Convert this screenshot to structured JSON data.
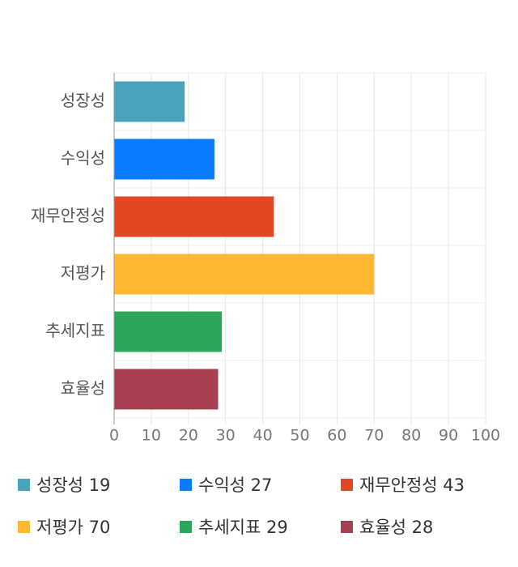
{
  "chart_data": {
    "type": "bar",
    "orientation": "horizontal",
    "categories": [
      "성장성",
      "수익성",
      "재무안정성",
      "저평가",
      "추세지표",
      "효율성"
    ],
    "values": [
      19,
      27,
      43,
      70,
      29,
      28
    ],
    "colors": [
      "#4aa3ba",
      "#0a7afe",
      "#e34622",
      "#fdb733",
      "#2ca75a",
      "#a63f4f"
    ],
    "xlim": [
      0,
      100
    ],
    "xticks": [
      "0",
      "10",
      "20",
      "30",
      "40",
      "50",
      "60",
      "70",
      "80",
      "90",
      "100"
    ],
    "grid": true,
    "legend_position": "bottom"
  },
  "legend": [
    {
      "label": "성장성 19",
      "color": "#4aa3ba"
    },
    {
      "label": "수익성 27",
      "color": "#0a7afe"
    },
    {
      "label": "재무안정성 43",
      "color": "#e34622"
    },
    {
      "label": "저평가 70",
      "color": "#fdb733"
    },
    {
      "label": "추세지표 29",
      "color": "#2ca75a"
    },
    {
      "label": "효율성 28",
      "color": "#a63f4f"
    }
  ]
}
